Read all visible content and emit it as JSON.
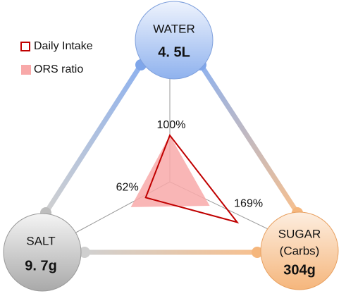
{
  "chart_data": {
    "type": "radar",
    "nodes": [
      {
        "name": "WATER",
        "amount": "4. 5L",
        "color": "#9fbdf0"
      },
      {
        "name": "SALT",
        "amount": "9. 7g",
        "color": "#c8c8c8"
      },
      {
        "name": "SUGAR",
        "note": "(Carbs)",
        "amount": "304g",
        "color": "#f7c08f"
      }
    ],
    "series": [
      {
        "name": "ORS ratio",
        "color": "#f8a9a9",
        "values": [
          100,
          100,
          100
        ]
      },
      {
        "name": "Daily Intake",
        "color": "#c00000",
        "values": [
          100,
          62,
          169
        ],
        "value_labels": [
          "100%",
          "62%",
          "169%"
        ]
      }
    ]
  }
}
